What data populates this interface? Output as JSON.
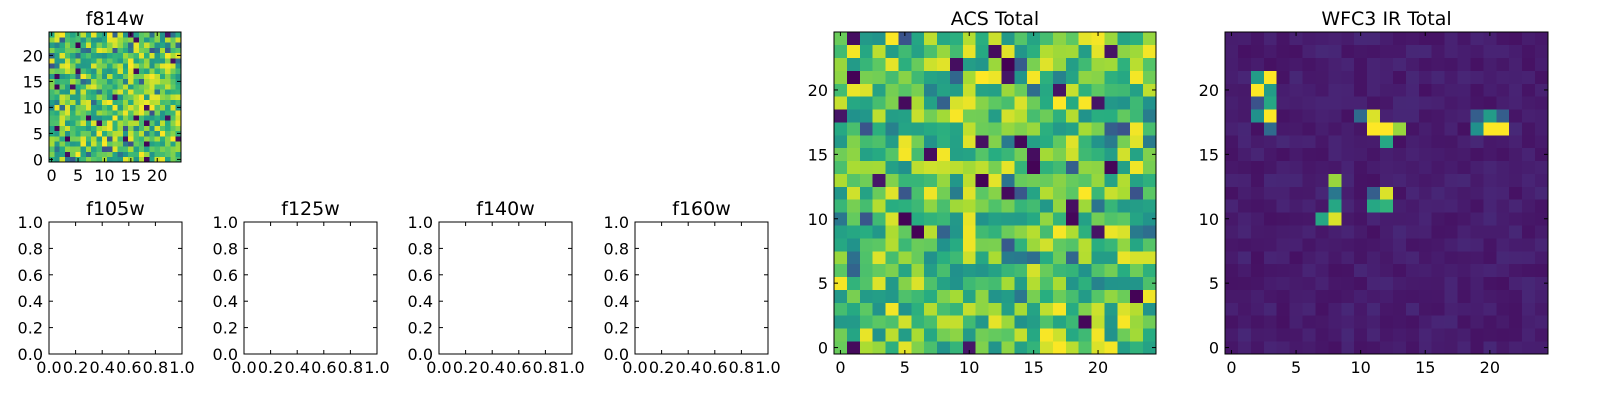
{
  "chart_data": [
    {
      "id": "f814w",
      "type": "heatmap",
      "title": "f814w",
      "colormap": "viridis",
      "grid_size": 25,
      "pattern": "noise-high",
      "seed": 11,
      "xlim": [
        -0.5,
        24.5
      ],
      "ylim": [
        -0.5,
        24.5
      ],
      "xticks": [
        0,
        5,
        10,
        15,
        20
      ],
      "yticks": [
        0,
        5,
        10,
        15,
        20
      ],
      "xtick_labels": [
        "0",
        "5",
        "10",
        "15",
        "20"
      ],
      "ytick_labels": [
        "0",
        "5",
        "10",
        "15",
        "20"
      ]
    },
    {
      "id": "f105w",
      "type": "heatmap",
      "title": "f105w",
      "empty": true,
      "xlim": [
        0,
        1
      ],
      "ylim": [
        0,
        1
      ],
      "xticks": [
        0,
        0.2,
        0.4,
        0.6,
        0.8,
        1.0
      ],
      "yticks": [
        0,
        0.2,
        0.4,
        0.6,
        0.8,
        1.0
      ],
      "xtick_labels": [
        "0.0",
        "0.2",
        "0.4",
        "0.6",
        "0.8",
        "1.0"
      ],
      "ytick_labels": [
        "0.0",
        "0.2",
        "0.4",
        "0.6",
        "0.8",
        "1.0"
      ]
    },
    {
      "id": "f125w",
      "type": "heatmap",
      "title": "f125w",
      "empty": true,
      "xlim": [
        0,
        1
      ],
      "ylim": [
        0,
        1
      ],
      "xticks": [
        0,
        0.2,
        0.4,
        0.6,
        0.8,
        1.0
      ],
      "yticks": [
        0,
        0.2,
        0.4,
        0.6,
        0.8,
        1.0
      ],
      "xtick_labels": [
        "0.0",
        "0.2",
        "0.4",
        "0.6",
        "0.8",
        "1.0"
      ],
      "ytick_labels": [
        "0.0",
        "0.2",
        "0.4",
        "0.6",
        "0.8",
        "1.0"
      ]
    },
    {
      "id": "f140w",
      "type": "heatmap",
      "title": "f140w",
      "empty": true,
      "xlim": [
        0,
        1
      ],
      "ylim": [
        0,
        1
      ],
      "xticks": [
        0,
        0.2,
        0.4,
        0.6,
        0.8,
        1.0
      ],
      "yticks": [
        0,
        0.2,
        0.4,
        0.6,
        0.8,
        1.0
      ],
      "xtick_labels": [
        "0.0",
        "0.2",
        "0.4",
        "0.6",
        "0.8",
        "1.0"
      ],
      "ytick_labels": [
        "0.0",
        "0.2",
        "0.4",
        "0.6",
        "0.8",
        "1.0"
      ]
    },
    {
      "id": "f160w",
      "type": "heatmap",
      "title": "f160w",
      "empty": true,
      "xlim": [
        0,
        1
      ],
      "ylim": [
        0,
        1
      ],
      "xticks": [
        0,
        0.2,
        0.4,
        0.6,
        0.8,
        1.0
      ],
      "yticks": [
        0,
        0.2,
        0.4,
        0.6,
        0.8,
        1.0
      ],
      "xtick_labels": [
        "0.0",
        "0.2",
        "0.4",
        "0.6",
        "0.8",
        "1.0"
      ],
      "ytick_labels": [
        "0.0",
        "0.2",
        "0.4",
        "0.6",
        "0.8",
        "1.0"
      ]
    },
    {
      "id": "acs-total",
      "type": "heatmap",
      "title": "ACS Total",
      "colormap": "viridis",
      "grid_size": 25,
      "pattern": "noise-high",
      "seed": 47,
      "xlim": [
        -0.5,
        24.5
      ],
      "ylim": [
        -0.5,
        24.5
      ],
      "xticks": [
        0,
        5,
        10,
        15,
        20
      ],
      "yticks": [
        0,
        5,
        10,
        15,
        20
      ],
      "xtick_labels": [
        "0",
        "5",
        "10",
        "15",
        "20"
      ],
      "ytick_labels": [
        "0",
        "5",
        "10",
        "15",
        "20"
      ]
    },
    {
      "id": "wfc3-ir-total",
      "type": "heatmap",
      "title": "WFC3 IR Total",
      "colormap": "viridis",
      "grid_size": 25,
      "pattern": "sparse-sources",
      "seed": 5,
      "background_level": 0.06,
      "hot_pixels": [
        {
          "x": 3,
          "y": 21,
          "v": 1.0
        },
        {
          "x": 2,
          "y": 21,
          "v": 0.55
        },
        {
          "x": 2,
          "y": 20,
          "v": 1.0
        },
        {
          "x": 3,
          "y": 20,
          "v": 0.55
        },
        {
          "x": 3,
          "y": 19,
          "v": 0.6
        },
        {
          "x": 2,
          "y": 19,
          "v": 0.25
        },
        {
          "x": 3,
          "y": 18,
          "v": 1.0
        },
        {
          "x": 2,
          "y": 18,
          "v": 0.5
        },
        {
          "x": 3,
          "y": 17,
          "v": 0.35
        },
        {
          "x": 10,
          "y": 18,
          "v": 0.35
        },
        {
          "x": 11,
          "y": 18,
          "v": 0.95
        },
        {
          "x": 11,
          "y": 17,
          "v": 1.0
        },
        {
          "x": 12,
          "y": 17,
          "v": 1.0
        },
        {
          "x": 13,
          "y": 17,
          "v": 0.85
        },
        {
          "x": 12,
          "y": 16,
          "v": 0.6
        },
        {
          "x": 19,
          "y": 18,
          "v": 0.3
        },
        {
          "x": 20,
          "y": 18,
          "v": 0.55
        },
        {
          "x": 19,
          "y": 17,
          "v": 0.5
        },
        {
          "x": 20,
          "y": 17,
          "v": 1.0
        },
        {
          "x": 21,
          "y": 17,
          "v": 1.0
        },
        {
          "x": 21,
          "y": 18,
          "v": 0.3
        },
        {
          "x": 8,
          "y": 13,
          "v": 0.85
        },
        {
          "x": 8,
          "y": 12,
          "v": 0.4
        },
        {
          "x": 8,
          "y": 11,
          "v": 0.6
        },
        {
          "x": 7,
          "y": 10,
          "v": 0.6
        },
        {
          "x": 8,
          "y": 10,
          "v": 0.95
        },
        {
          "x": 12,
          "y": 12,
          "v": 0.95
        },
        {
          "x": 11,
          "y": 11,
          "v": 0.6
        },
        {
          "x": 12,
          "y": 11,
          "v": 0.65
        },
        {
          "x": 11,
          "y": 12,
          "v": 0.3
        }
      ],
      "xlim": [
        -0.5,
        24.5
      ],
      "ylim": [
        -0.5,
        24.5
      ],
      "xticks": [
        0,
        5,
        10,
        15,
        20
      ],
      "yticks": [
        0,
        5,
        10,
        15,
        20
      ],
      "xtick_labels": [
        "0",
        "5",
        "10",
        "15",
        "20"
      ],
      "ytick_labels": [
        "0",
        "5",
        "10",
        "15",
        "20"
      ]
    }
  ]
}
